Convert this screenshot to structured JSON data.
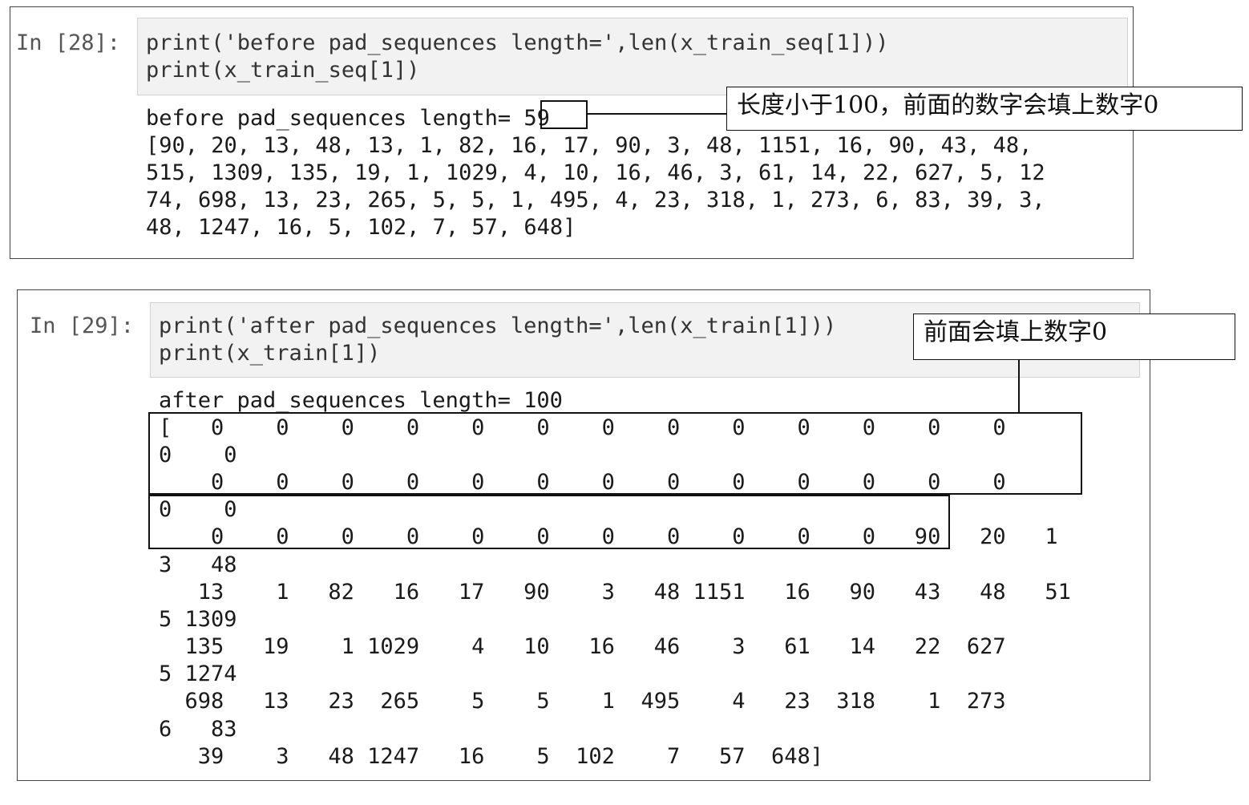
{
  "cell1": {
    "prompt": "In [28]:",
    "code": [
      "print('before pad_sequences length=',len(x_train_seq[1]))",
      "print(x_train_seq[1])"
    ],
    "output": [
      "before pad_sequences length= 59",
      "[90, 20, 13, 48, 13, 1, 82, 16, 17, 90, 3, 48, 1151, 16, 90, 43, 48,",
      "515, 1309, 135, 19, 1, 1029, 4, 10, 16, 46, 3, 61, 14, 22, 627, 5, 12",
      "74, 698, 13, 23, 265, 5, 5, 1, 495, 4, 23, 318, 1, 273, 6, 83, 39, 3,",
      "48, 1247, 16, 5, 102, 7, 57, 648]"
    ],
    "callout": "长度小于100，前面的数字会填上数字0"
  },
  "cell2": {
    "prompt": "In [29]:",
    "code": [
      "print('after pad_sequences length=',len(x_train[1]))",
      "print(x_train[1])"
    ],
    "output": [
      "after pad_sequences length= 100",
      "[   0    0    0    0    0    0    0    0    0    0    0    0    0",
      "0    0",
      "    0    0    0    0    0    0    0    0    0    0    0    0    0",
      "0    0",
      "    0    0    0    0    0    0    0    0    0    0    0   90   20   1",
      "3   48",
      "   13    1   82   16   17   90    3   48 1151   16   90   43   48   51",
      "5 1309",
      "  135   19    1 1029    4   10   16   46    3   61   14   22  627",
      "5 1274",
      "  698   13   23  265    5    5    1  495    4   23  318    1  273",
      "6   83",
      "   39    3   48 1247   16    5  102    7   57  648]"
    ],
    "callout": "前面会填上数字0"
  }
}
